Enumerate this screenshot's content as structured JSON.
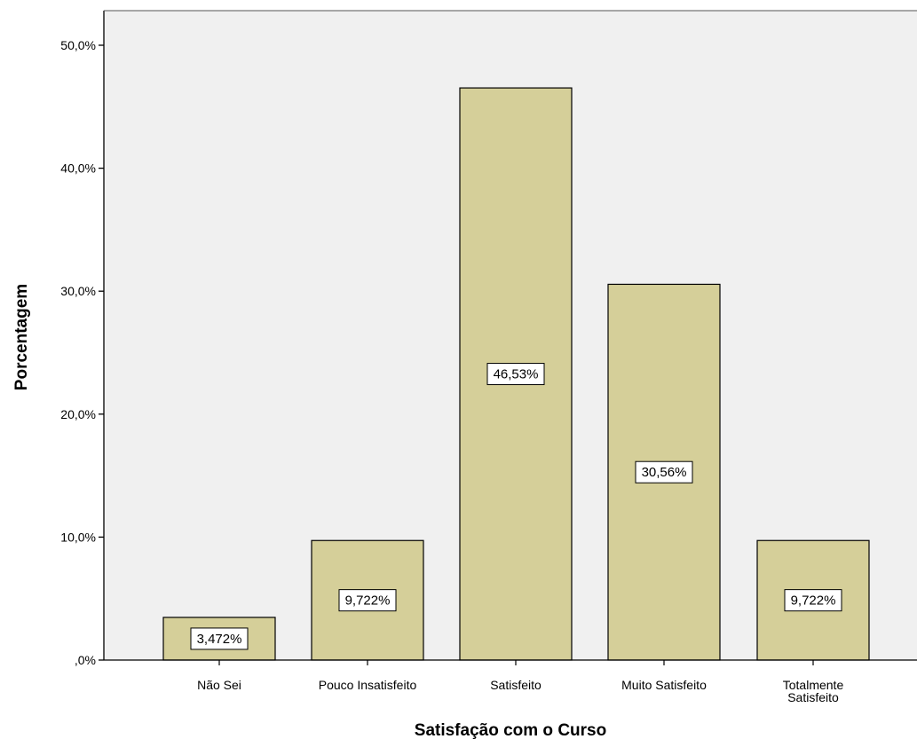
{
  "chart_data": {
    "type": "bar",
    "title": "",
    "xlabel": "Satisfação com o Curso",
    "ylabel": "Porcentagem",
    "categories": [
      [
        "Não Sei"
      ],
      [
        "Pouco Insatisfeito"
      ],
      [
        "Satisfeito"
      ],
      [
        "Muito Satisfeito"
      ],
      [
        "Totalmente",
        "Satisfeito"
      ]
    ],
    "values": [
      3.472,
      9.722,
      46.53,
      30.56,
      9.722
    ],
    "data_labels": [
      "3,472%",
      "9,722%",
      "46,53%",
      "30,56%",
      "9,722%"
    ],
    "ylim": [
      0,
      50
    ],
    "yticks": [
      0,
      10,
      20,
      30,
      40,
      50
    ],
    "ytick_labels": [
      ",0%",
      "10,0%",
      "20,0%",
      "30,0%",
      "40,0%",
      "50,0%"
    ],
    "grid": false,
    "legend": "none",
    "colors": {
      "plot_background": "#f0f0f0",
      "bar_fill": "#d5cf99",
      "bar_stroke": "#000000",
      "axis": "#000000"
    }
  }
}
